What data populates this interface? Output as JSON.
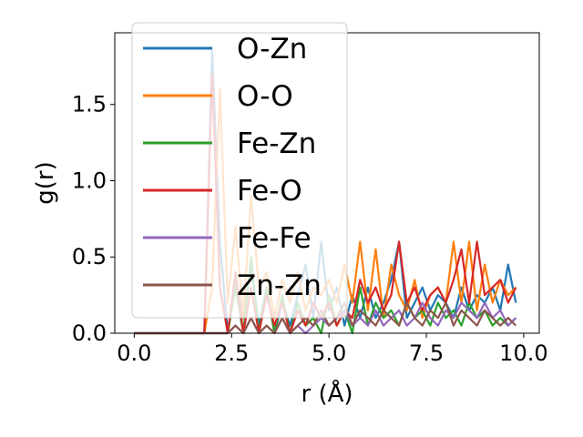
{
  "chart_data": {
    "type": "line",
    "title": "",
    "xlabel": "r (Å)",
    "ylabel": "g(r)",
    "xlim": [
      -0.5,
      10.4
    ],
    "ylim": [
      0.0,
      1.97
    ],
    "xticks": [
      0.0,
      2.5,
      5.0,
      7.5,
      10.0
    ],
    "xtick_labels": [
      "0.0",
      "2.5",
      "5.0",
      "7.5",
      "10.0"
    ],
    "yticks": [
      0.0,
      0.5,
      1.0,
      1.5
    ],
    "ytick_labels": [
      "0.0",
      "0.5",
      "1.0",
      "1.5"
    ],
    "grid": false,
    "legend_position": "upper-left",
    "x": [
      0.0,
      0.2,
      0.4,
      0.6,
      0.8,
      1.0,
      1.2,
      1.4,
      1.6,
      1.8,
      2.0,
      2.2,
      2.4,
      2.6,
      2.8,
      3.0,
      3.2,
      3.4,
      3.6,
      3.8,
      4.0,
      4.2,
      4.4,
      4.6,
      4.8,
      5.0,
      5.2,
      5.4,
      5.6,
      5.8,
      6.0,
      6.2,
      6.4,
      6.6,
      6.8,
      7.0,
      7.2,
      7.4,
      7.6,
      7.8,
      8.0,
      8.2,
      8.4,
      8.6,
      8.8,
      9.0,
      9.2,
      9.4,
      9.6,
      9.8
    ],
    "series": [
      {
        "name": "O-Zn",
        "color": "#1f77b4",
        "values": [
          0,
          0,
          0,
          0,
          0,
          0,
          0,
          0,
          0,
          0,
          1.85,
          0.6,
          0,
          0.35,
          0.1,
          0.45,
          0.05,
          0.3,
          0,
          0.2,
          0.05,
          0.25,
          0.45,
          0.1,
          0.6,
          0.15,
          0.3,
          0.05,
          0.25,
          0.1,
          0.3,
          0.1,
          0.2,
          0.35,
          0.6,
          0.1,
          0.2,
          0.3,
          0.15,
          0.25,
          0.2,
          0.1,
          0.3,
          0.15,
          0.25,
          0.2,
          0.3,
          0.15,
          0.45,
          0.2
        ]
      },
      {
        "name": "O-O",
        "color": "#ff7f0e",
        "values": [
          0,
          0,
          0,
          0,
          0,
          0,
          0,
          0,
          0,
          0,
          0.3,
          1.6,
          0.2,
          0.7,
          0.1,
          0.9,
          0.3,
          0.4,
          0.1,
          0.35,
          0.2,
          0.4,
          0.15,
          0.3,
          0.25,
          0.35,
          0.2,
          0.45,
          0.2,
          0.6,
          0.15,
          0.55,
          0.1,
          0.45,
          0.25,
          0.15,
          0.35,
          0.1,
          0.25,
          0.3,
          0.2,
          0.6,
          0.2,
          0.6,
          0.15,
          0.45,
          0.2,
          0.35,
          0.25,
          0.3
        ]
      },
      {
        "name": "Fe-Zn",
        "color": "#2ca02c",
        "values": [
          0,
          0,
          0,
          0,
          0,
          0,
          0,
          0,
          0,
          0,
          0,
          0,
          0,
          0.3,
          0,
          0.5,
          0,
          0.3,
          0,
          0.25,
          0,
          0.2,
          0.05,
          0.1,
          0,
          0.25,
          0.05,
          0.15,
          0,
          0.3,
          0.05,
          0.2,
          0.1,
          0.15,
          0.05,
          0.2,
          0.1,
          0.15,
          0.05,
          0.2,
          0.1,
          0.15,
          0.05,
          0.2,
          0.1,
          0.15,
          0.05,
          0.1,
          0.05,
          0.1
        ]
      },
      {
        "name": "Fe-O",
        "color": "#d62728",
        "values": [
          0,
          0,
          0,
          0,
          0,
          0,
          0,
          0,
          0,
          0,
          1.7,
          0.3,
          0,
          0.4,
          0,
          0.3,
          0,
          0.25,
          0.05,
          0.2,
          0,
          0.15,
          0.05,
          0.2,
          0.1,
          0.2,
          0.05,
          0.15,
          0.1,
          0.35,
          0.2,
          0.3,
          0.15,
          0.25,
          0.6,
          0.2,
          0.3,
          0.15,
          0.25,
          0.3,
          0.2,
          0.35,
          0.55,
          0.2,
          0.6,
          0.25,
          0.3,
          0.35,
          0.2,
          0.3
        ]
      },
      {
        "name": "Fe-Fe",
        "color": "#9467bd",
        "values": [
          0,
          0,
          0,
          0,
          0,
          0,
          0,
          0,
          0,
          0,
          0,
          0,
          0,
          0.05,
          0,
          0.1,
          0,
          0.05,
          0,
          0.1,
          0,
          0.05,
          0,
          0.05,
          0.1,
          0.05,
          0.1,
          0.15,
          0.05,
          0.1,
          0.05,
          0.15,
          0.05,
          0.1,
          0.15,
          0.05,
          0.1,
          0.2,
          0.1,
          0.05,
          0.15,
          0.1,
          0.2,
          0.15,
          0.1,
          0.2,
          0.1,
          0.15,
          0.05,
          0.1
        ]
      },
      {
        "name": "Zn-Zn",
        "color": "#8c564b",
        "values": [
          0,
          0,
          0,
          0,
          0,
          0,
          0,
          0,
          0,
          0,
          0,
          0,
          0,
          0.05,
          0,
          0.1,
          0,
          0.05,
          0,
          0.1,
          0,
          0.05,
          0.1,
          0.05,
          0.15,
          0.05,
          0.1,
          0.2,
          0.05,
          0.15,
          0.1,
          0.05,
          0.15,
          0.1,
          0.05,
          0.2,
          0.1,
          0.05,
          0.15,
          0.1,
          0.2,
          0.05,
          0.15,
          0.1,
          0.05,
          0.15,
          0.1,
          0.05,
          0.1,
          0.05
        ]
      }
    ]
  }
}
